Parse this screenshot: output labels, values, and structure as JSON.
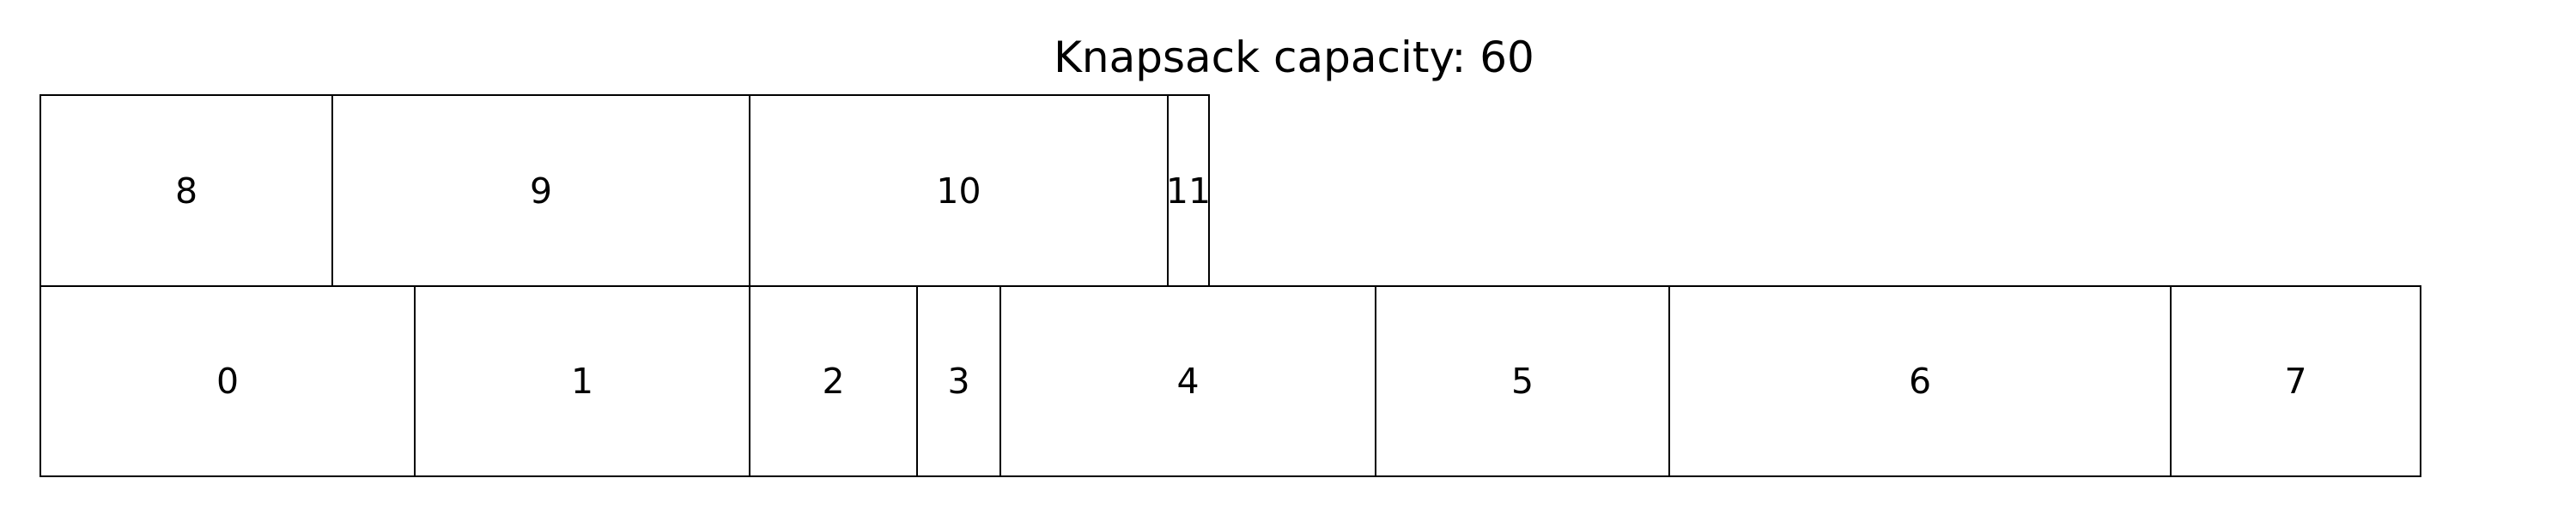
{
  "title": "Knapsack capacity: 60",
  "items": [
    {
      "label": "0",
      "row": 0
    },
    {
      "label": "1",
      "row": 0
    },
    {
      "label": "2",
      "row": 0
    },
    {
      "label": "3",
      "row": 0
    },
    {
      "label": "4",
      "row": 0
    },
    {
      "label": "5",
      "row": 0
    },
    {
      "label": "6",
      "row": 0
    },
    {
      "label": "7",
      "row": 0
    },
    {
      "label": "8",
      "row": 1
    },
    {
      "label": "9",
      "row": 1
    },
    {
      "label": "10",
      "row": 1
    },
    {
      "label": "11",
      "row": 1
    }
  ]
}
